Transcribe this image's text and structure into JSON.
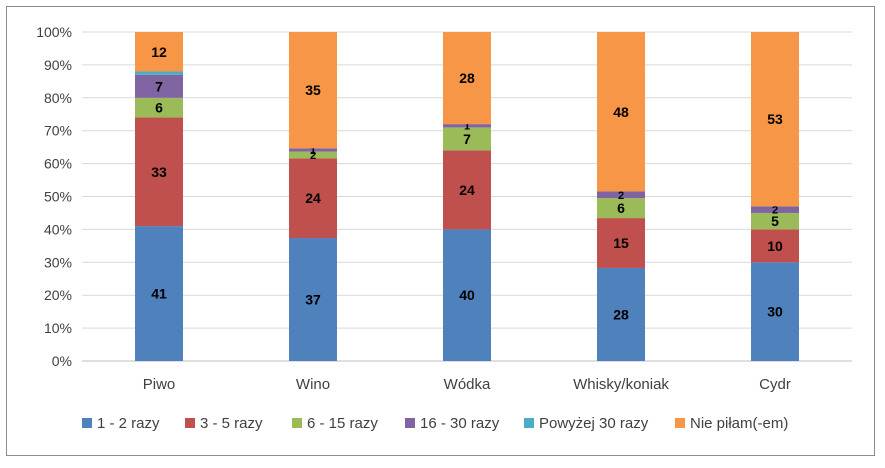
{
  "chart_data": {
    "type": "bar",
    "stacked": true,
    "percent": true,
    "categories": [
      "Piwo",
      "Wino",
      "Wódka",
      "Whisky/koniak",
      "Cydr"
    ],
    "series": [
      {
        "name": "1 - 2 razy",
        "color": "#4f81bd",
        "values": [
          41,
          37,
          40,
          28,
          30
        ],
        "labels": [
          "41",
          "37",
          "40",
          "28",
          "30"
        ]
      },
      {
        "name": "3 - 5 razy",
        "color": "#c0504d",
        "values": [
          33,
          24,
          24,
          15,
          10
        ],
        "labels": [
          "33",
          "24",
          "24",
          "15",
          "10"
        ]
      },
      {
        "name": "6 - 15 razy",
        "color": "#9bbb59",
        "values": [
          6,
          2,
          7,
          6,
          5
        ],
        "labels": [
          "6",
          "2",
          "7",
          "6",
          "5"
        ]
      },
      {
        "name": "16 - 30 razy",
        "color": "#8064a2",
        "values": [
          7,
          1,
          1,
          2,
          2
        ],
        "labels": [
          "7",
          "1",
          "1",
          "2",
          "2"
        ]
      },
      {
        "name": "Powyżej 30 razy",
        "color": "#4bacc6",
        "values": [
          1,
          0,
          0,
          0,
          0
        ],
        "labels": [
          "",
          "",
          "",
          "",
          ""
        ]
      },
      {
        "name": "Nie piłam(-em)",
        "color": "#f79646",
        "values": [
          12,
          35,
          28,
          48,
          53
        ],
        "labels": [
          "12",
          "35",
          "28",
          "48",
          "53"
        ]
      }
    ],
    "y_ticks": [
      "0%",
      "10%",
      "20%",
      "30%",
      "40%",
      "50%",
      "60%",
      "70%",
      "80%",
      "90%",
      "100%"
    ],
    "ylim": [
      0,
      100
    ],
    "grid": true,
    "legend": "bottom",
    "title": "",
    "xlabel": "",
    "ylabel": ""
  }
}
